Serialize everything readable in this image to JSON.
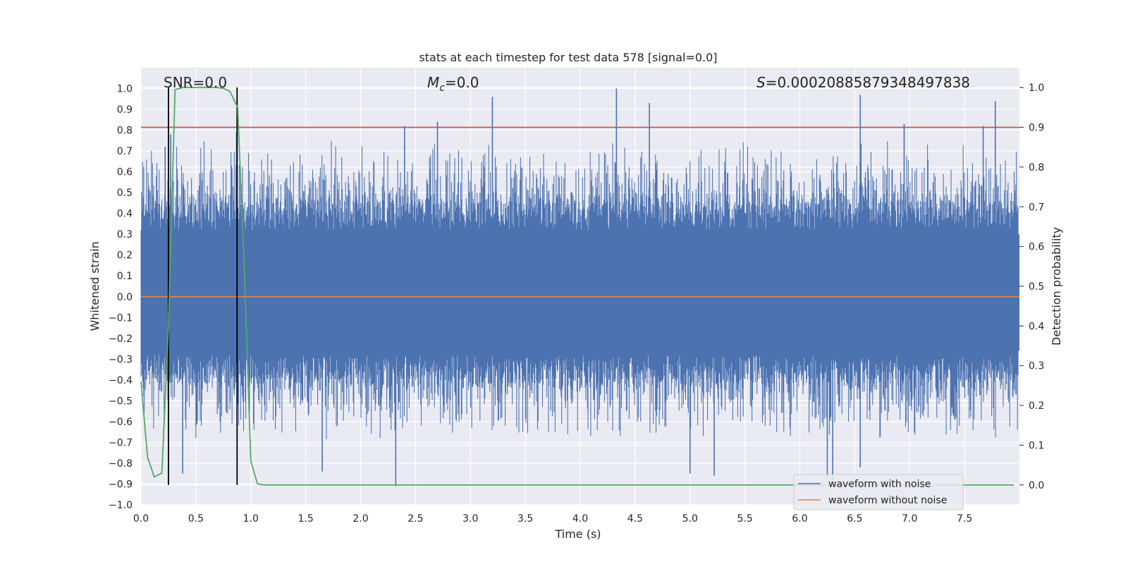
{
  "chart_data": {
    "type": "line",
    "title": "stats at each timestep for test data 578 [signal=0.0]",
    "xlabel": "Time (s)",
    "ylabel_left": "Whitened strain",
    "ylabel_right": "Detection probability",
    "xlim": [
      0.0,
      8.0
    ],
    "ylim_left": [
      -1.0,
      1.1
    ],
    "ylim_right": [
      -0.05,
      1.05
    ],
    "x_ticks": [
      "0.0",
      "0.5",
      "1.0",
      "1.5",
      "2.0",
      "2.5",
      "3.0",
      "3.5",
      "4.0",
      "4.5",
      "5.0",
      "5.5",
      "6.0",
      "6.5",
      "7.0",
      "7.5"
    ],
    "y_left_ticks": [
      "1.0",
      "0.9",
      "0.8",
      "0.7",
      "0.6",
      "0.5",
      "0.4",
      "0.3",
      "0.2",
      "0.1",
      "0.0",
      "-0.1",
      "-0.2",
      "-0.3",
      "-0.4",
      "-0.5",
      "-0.6",
      "-0.7",
      "-0.8",
      "-0.9",
      "-1.0"
    ],
    "y_right_ticks": [
      "1.0",
      "0.9",
      "0.8",
      "0.7",
      "0.6",
      "0.5",
      "0.4",
      "0.3",
      "0.2",
      "0.1",
      "0.0"
    ],
    "annotations": {
      "snr": "SNR=0.0",
      "mc_symbol": "M",
      "mc_sub": "c",
      "mc_value": "=0.0",
      "s_symbol": "S",
      "s_value": "=0.00020885879348497838"
    },
    "threshold_probability": 0.9,
    "detection_window": [
      0.25,
      0.875
    ],
    "legend": [
      "waveform with noise",
      "waveform without noise"
    ],
    "colors": {
      "noise": "#4c72b0",
      "clean": "#dd8452",
      "probability": "#55a868",
      "threshold": "#c44e52",
      "window": "#000000",
      "background": "#eaeaf2",
      "grid": "#ffffff"
    },
    "series": [
      {
        "name": "waveform with noise",
        "description": "dense noise band, typically -0.45 to 0.55, with spikes",
        "spikes": [
          [
            0.22,
            0.72
          ],
          [
            0.27,
            0.78
          ],
          [
            0.87,
            0.79
          ],
          [
            2.4,
            0.82
          ],
          [
            2.7,
            0.84
          ],
          [
            3.2,
            0.96
          ],
          [
            4.33,
            1.0
          ],
          [
            4.63,
            0.93
          ],
          [
            6.55,
            0.97
          ],
          [
            6.95,
            0.83
          ],
          [
            7.78,
            0.94
          ],
          [
            7.67,
            0.82
          ],
          [
            0.38,
            -0.85
          ],
          [
            1.65,
            -0.84
          ],
          [
            2.32,
            -0.91
          ],
          [
            5.0,
            -0.85
          ],
          [
            5.22,
            -0.86
          ],
          [
            6.25,
            -0.87
          ],
          [
            6.3,
            -0.88
          ],
          [
            6.55,
            -0.82
          ]
        ]
      },
      {
        "name": "waveform without noise",
        "values_constant": 0.0
      },
      {
        "name": "detection probability",
        "x": [
          0.0,
          0.06,
          0.12,
          0.19,
          0.25,
          0.31,
          0.38,
          0.44,
          0.5,
          0.56,
          0.62,
          0.69,
          0.75,
          0.81,
          0.88,
          0.94,
          1.0,
          1.06,
          1.12,
          1.19,
          1.25,
          1.5,
          2.0,
          3.0,
          4.0,
          5.0,
          6.0,
          7.0,
          7.95
        ],
        "y": [
          0.26,
          0.07,
          0.02,
          0.03,
          0.4,
          0.995,
          1.0,
          1.0,
          1.0,
          1.0,
          1.0,
          1.0,
          0.998,
          0.99,
          0.95,
          0.55,
          0.06,
          0.003,
          0.0,
          0.0,
          0.0,
          0.0,
          0.0,
          0.0,
          0.0,
          0.0,
          0.0,
          0.0,
          0.0
        ]
      }
    ]
  }
}
